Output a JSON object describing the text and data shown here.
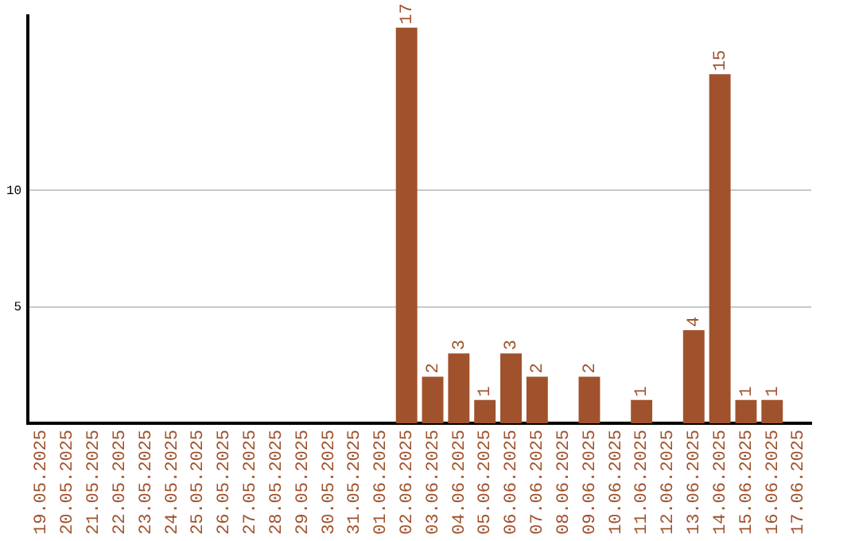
{
  "chart_data": {
    "type": "bar",
    "categories": [
      "19.05.2025",
      "20.05.2025",
      "21.05.2025",
      "22.05.2025",
      "23.05.2025",
      "24.05.2025",
      "25.05.2025",
      "26.05.2025",
      "27.05.2025",
      "28.05.2025",
      "29.05.2025",
      "30.05.2025",
      "31.05.2025",
      "01.06.2025",
      "02.06.2025",
      "03.06.2025",
      "04.06.2025",
      "05.06.2025",
      "06.06.2025",
      "07.06.2025",
      "08.06.2025",
      "09.06.2025",
      "10.06.2025",
      "11.06.2025",
      "12.06.2025",
      "13.06.2025",
      "14.06.2025",
      "15.06.2025",
      "16.06.2025",
      "17.06.2025"
    ],
    "values": [
      0,
      0,
      0,
      0,
      0,
      0,
      0,
      0,
      0,
      0,
      0,
      0,
      0,
      0,
      17,
      2,
      3,
      1,
      3,
      2,
      0,
      2,
      0,
      1,
      0,
      4,
      15,
      1,
      1,
      0
    ],
    "value_labels": [
      null,
      null,
      null,
      null,
      null,
      null,
      null,
      null,
      null,
      null,
      null,
      null,
      null,
      null,
      "17",
      "2",
      "3",
      "1",
      "3",
      "2",
      null,
      "2",
      null,
      "1",
      null,
      "4",
      "15",
      "1",
      "1",
      null
    ],
    "color": "#a0522d",
    "ylim": [
      0,
      17.5
    ],
    "yticks": [
      5,
      10
    ],
    "grid": "y",
    "legend": false
  }
}
